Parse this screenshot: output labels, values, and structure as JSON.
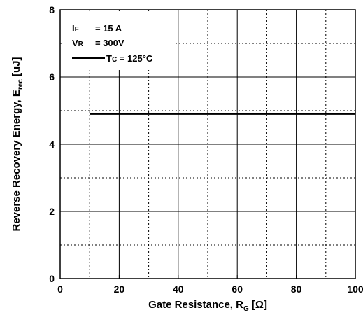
{
  "chart_data": {
    "type": "line",
    "title": "",
    "xlabel": "Gate Resistance, R",
    "xlabel_sub": "G",
    "xlabel_unit": " [Ω]",
    "ylabel": "Reverse Recovery Energy, E",
    "ylabel_sub": "rec",
    "ylabel_unit": " [uJ]",
    "xlim": [
      0,
      100
    ],
    "ylim": [
      0,
      8
    ],
    "x_ticks": [
      0,
      20,
      40,
      60,
      80,
      100
    ],
    "y_ticks": [
      0,
      2,
      4,
      6,
      8
    ],
    "x_minor_grid": [
      10,
      30,
      50,
      70,
      90
    ],
    "y_minor_grid": [
      1,
      3,
      5,
      7
    ],
    "grid": true,
    "legend_position": "top-left",
    "conditions": [
      {
        "symbol": "I",
        "sub": "F",
        "value": "= 15 A"
      },
      {
        "symbol": "V",
        "sub": "R",
        "value": "= 300V"
      }
    ],
    "series": [
      {
        "name": "Tc = 125°C",
        "name_symbol": "T",
        "name_sub": "C",
        "name_value": " = 125°C",
        "color": "#000000",
        "x": [
          10,
          100
        ],
        "y": [
          4.9,
          4.9
        ]
      }
    ]
  }
}
